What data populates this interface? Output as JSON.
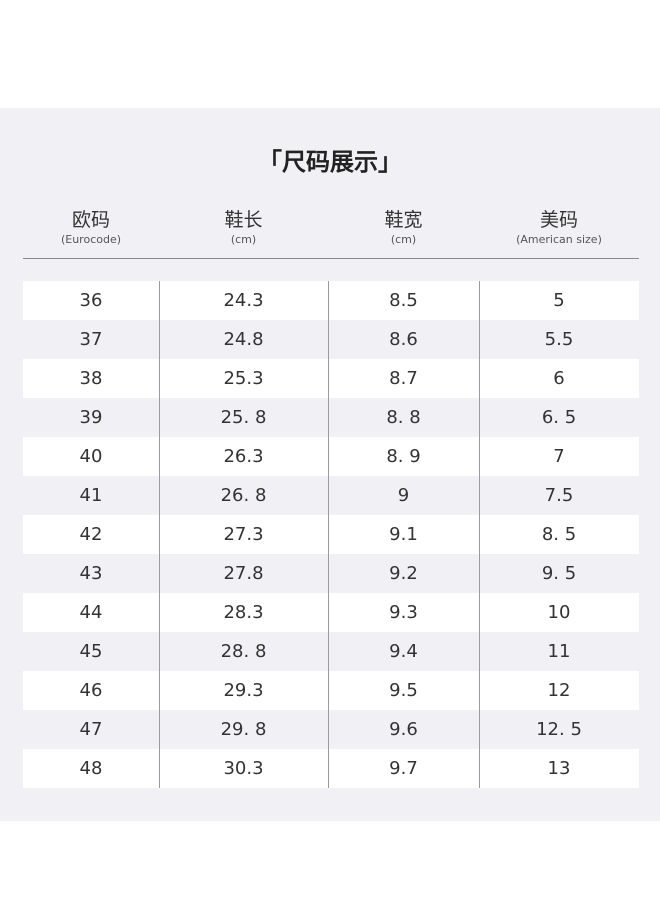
{
  "title": "「尺码展示」",
  "headers": [
    {
      "cn": "欧码",
      "en": "(Eurocode)"
    },
    {
      "cn": "鞋长",
      "en": "(cm)"
    },
    {
      "cn": "鞋宽",
      "en": "(cm)"
    },
    {
      "cn": "美码",
      "en": "(American size)"
    }
  ],
  "rows": [
    [
      "36",
      "24.3",
      "8.5",
      "5"
    ],
    [
      "37",
      "24.8",
      "8.6",
      "5.5"
    ],
    [
      "38",
      "25.3",
      "8.7",
      "6"
    ],
    [
      "39",
      "25. 8",
      "8. 8",
      "6. 5"
    ],
    [
      "40",
      "26.3",
      "8. 9",
      "7"
    ],
    [
      "41",
      "26. 8",
      "9",
      "7.5"
    ],
    [
      "42",
      "27.3",
      "9.1",
      "8. 5"
    ],
    [
      "43",
      "27.8",
      "9.2",
      "9. 5"
    ],
    [
      "44",
      "28.3",
      "9.3",
      "10"
    ],
    [
      "45",
      "28. 8",
      "9.4",
      "11"
    ],
    [
      "46",
      "29.3",
      "9.5",
      "12"
    ],
    [
      "47",
      "29. 8",
      "9.6",
      "12. 5"
    ],
    [
      "48",
      "30.3",
      "9.7",
      "13"
    ]
  ]
}
